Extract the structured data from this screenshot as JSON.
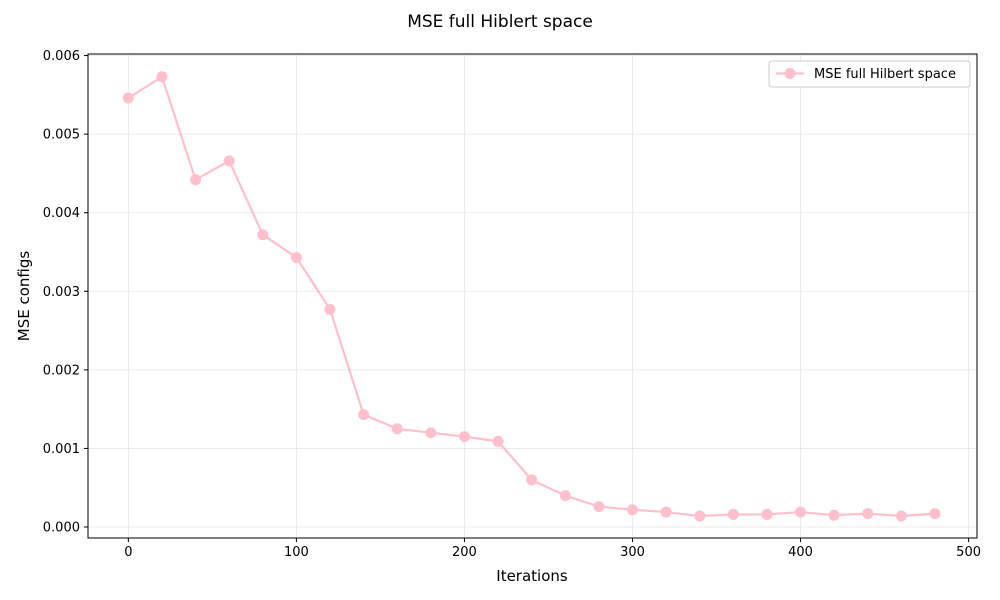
{
  "chart_data": {
    "type": "line",
    "title": "MSE full Hiblert space",
    "xlabel": "Iterations",
    "ylabel": "MSE configs",
    "xlim": [
      -24,
      505
    ],
    "ylim": [
      -0.00014,
      0.00602
    ],
    "xticks": [
      0,
      100,
      200,
      300,
      400,
      500
    ],
    "xtick_labels": [
      "0",
      "100",
      "200",
      "300",
      "400",
      "500"
    ],
    "yticks": [
      0,
      0.001,
      0.002,
      0.003,
      0.004,
      0.005,
      0.006
    ],
    "ytick_labels": [
      "0.000",
      "0.001",
      "0.002",
      "0.003",
      "0.004",
      "0.005",
      "0.006"
    ],
    "grid": true,
    "legend_position": "top-right",
    "series": [
      {
        "name": "MSE full Hilbert space",
        "color": "#ffc0cb",
        "marker": "circle",
        "x": [
          0,
          20,
          40,
          60,
          80,
          100,
          120,
          140,
          160,
          180,
          200,
          220,
          240,
          260,
          280,
          300,
          320,
          340,
          360,
          380,
          400,
          420,
          440,
          460,
          480
        ],
        "y": [
          0.00546,
          0.00573,
          0.00442,
          0.00466,
          0.00372,
          0.00343,
          0.00277,
          0.00143,
          0.00125,
          0.0012,
          0.00115,
          0.00109,
          0.0006,
          0.0004,
          0.00026,
          0.00022,
          0.00019,
          0.00014,
          0.00016,
          0.00016,
          0.00019,
          0.00015,
          0.00017,
          0.00014,
          0.00017
        ]
      }
    ]
  }
}
